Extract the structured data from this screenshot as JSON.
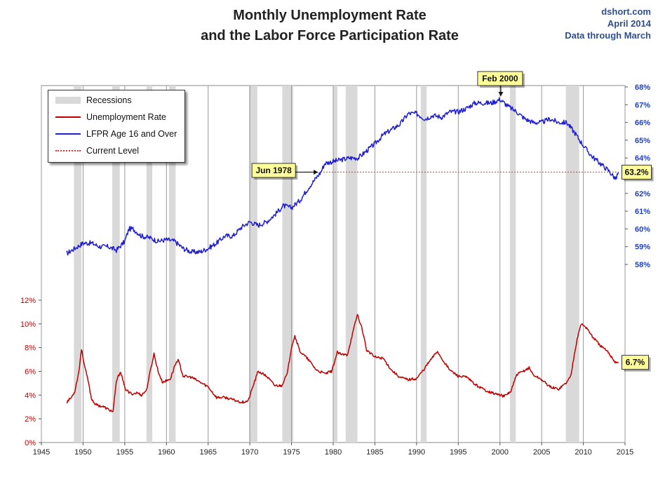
{
  "header": {
    "title_line1": "Monthly Unemployment Rate",
    "title_line2": "and the Labor Force Participation Rate",
    "source_line1": "dshort.com",
    "source_line2": "April 2014",
    "source_line3": "Data through March"
  },
  "chart_data": {
    "type": "line",
    "x_axis": {
      "range": [
        1945,
        2015
      ],
      "ticks": [
        1945,
        1950,
        1955,
        1960,
        1965,
        1970,
        1975,
        1980,
        1985,
        1990,
        1995,
        2000,
        2005,
        2010,
        2015
      ],
      "tick_labels": [
        "1945",
        "1950",
        "1955",
        "1960",
        "1965",
        "1970",
        "1975",
        "1980",
        "1985",
        "1990",
        "1995",
        "2000",
        "2005",
        "2010",
        "2015"
      ]
    },
    "y_axis_left": {
      "label": "",
      "range": [
        0,
        12
      ],
      "tick_labels": [
        "0%",
        "2%",
        "4%",
        "6%",
        "8%",
        "10%",
        "12%"
      ],
      "color": "#c00000"
    },
    "y_axis_right": {
      "label": "",
      "range": [
        58,
        68
      ],
      "tick_labels": [
        "58%",
        "59%",
        "60%",
        "61%",
        "62%",
        "63%",
        "64%",
        "65%",
        "66%",
        "67%",
        "68%"
      ],
      "color": "#1f3fbf"
    },
    "recessions": [
      [
        1948.9,
        1949.8
      ],
      [
        1953.5,
        1954.4
      ],
      [
        1957.6,
        1958.3
      ],
      [
        1960.3,
        1961.1
      ],
      [
        1969.9,
        1970.9
      ],
      [
        1973.9,
        1975.2
      ],
      [
        1980.0,
        1980.5
      ],
      [
        1981.5,
        1982.9
      ],
      [
        1990.5,
        1991.2
      ],
      [
        2001.2,
        2001.9
      ],
      [
        2007.9,
        2009.5
      ]
    ],
    "series": [
      {
        "name": "Unemployment Rate",
        "axis": "left",
        "color": "#c00000",
        "points": [
          [
            1948.0,
            3.4
          ],
          [
            1948.6,
            3.8
          ],
          [
            1949.0,
            4.3
          ],
          [
            1949.5,
            6.0
          ],
          [
            1949.8,
            7.9
          ],
          [
            1950.2,
            6.4
          ],
          [
            1950.6,
            5.2
          ],
          [
            1951.0,
            3.7
          ],
          [
            1951.5,
            3.2
          ],
          [
            1952.0,
            3.1
          ],
          [
            1952.5,
            3.0
          ],
          [
            1953.0,
            2.8
          ],
          [
            1953.6,
            2.6
          ],
          [
            1954.0,
            5.2
          ],
          [
            1954.5,
            6.0
          ],
          [
            1955.0,
            4.6
          ],
          [
            1955.5,
            4.2
          ],
          [
            1956.0,
            4.1
          ],
          [
            1956.5,
            4.2
          ],
          [
            1957.0,
            4.0
          ],
          [
            1957.6,
            4.4
          ],
          [
            1958.0,
            5.8
          ],
          [
            1958.5,
            7.5
          ],
          [
            1959.0,
            6.0
          ],
          [
            1959.5,
            5.1
          ],
          [
            1960.0,
            5.2
          ],
          [
            1960.5,
            5.4
          ],
          [
            1961.0,
            6.5
          ],
          [
            1961.4,
            7.0
          ],
          [
            1962.0,
            5.6
          ],
          [
            1963.0,
            5.5
          ],
          [
            1964.0,
            5.1
          ],
          [
            1965.0,
            4.7
          ],
          [
            1966.0,
            3.8
          ],
          [
            1967.0,
            3.8
          ],
          [
            1968.0,
            3.6
          ],
          [
            1969.0,
            3.4
          ],
          [
            1969.8,
            3.5
          ],
          [
            1970.5,
            5.0
          ],
          [
            1971.0,
            6.0
          ],
          [
            1972.0,
            5.6
          ],
          [
            1973.0,
            4.8
          ],
          [
            1973.8,
            4.8
          ],
          [
            1974.5,
            5.8
          ],
          [
            1975.0,
            8.1
          ],
          [
            1975.4,
            9.0
          ],
          [
            1976.0,
            7.7
          ],
          [
            1977.0,
            7.0
          ],
          [
            1978.0,
            6.1
          ],
          [
            1979.0,
            5.8
          ],
          [
            1979.8,
            6.0
          ],
          [
            1980.5,
            7.6
          ],
          [
            1981.0,
            7.4
          ],
          [
            1981.7,
            7.4
          ],
          [
            1982.4,
            9.4
          ],
          [
            1982.9,
            10.8
          ],
          [
            1983.5,
            9.5
          ],
          [
            1984.0,
            7.8
          ],
          [
            1985.0,
            7.2
          ],
          [
            1986.0,
            7.1
          ],
          [
            1987.0,
            6.1
          ],
          [
            1988.0,
            5.5
          ],
          [
            1989.0,
            5.3
          ],
          [
            1990.0,
            5.4
          ],
          [
            1990.8,
            6.1
          ],
          [
            1991.5,
            6.8
          ],
          [
            1992.5,
            7.7
          ],
          [
            1993.0,
            7.1
          ],
          [
            1994.0,
            6.1
          ],
          [
            1995.0,
            5.6
          ],
          [
            1996.0,
            5.5
          ],
          [
            1997.0,
            4.9
          ],
          [
            1998.0,
            4.5
          ],
          [
            1999.0,
            4.2
          ],
          [
            2000.0,
            4.0
          ],
          [
            2000.5,
            3.9
          ],
          [
            2001.3,
            4.3
          ],
          [
            2002.0,
            5.7
          ],
          [
            2003.5,
            6.3
          ],
          [
            2004.0,
            5.7
          ],
          [
            2005.0,
            5.3
          ],
          [
            2006.0,
            4.7
          ],
          [
            2007.0,
            4.5
          ],
          [
            2007.9,
            5.0
          ],
          [
            2008.5,
            5.6
          ],
          [
            2009.0,
            7.8
          ],
          [
            2009.5,
            9.5
          ],
          [
            2009.8,
            10.0
          ],
          [
            2010.5,
            9.6
          ],
          [
            2011.0,
            9.0
          ],
          [
            2012.0,
            8.2
          ],
          [
            2013.0,
            7.6
          ],
          [
            2013.8,
            6.8
          ],
          [
            2014.2,
            6.7
          ]
        ]
      },
      {
        "name": "LFPR Age 16 and Over",
        "axis": "right",
        "color": "#1f1fd0",
        "points": [
          [
            1948.0,
            58.6
          ],
          [
            1949.0,
            58.9
          ],
          [
            1950.0,
            59.2
          ],
          [
            1951.0,
            59.2
          ],
          [
            1952.0,
            59.0
          ],
          [
            1953.0,
            59.0
          ],
          [
            1954.0,
            58.8
          ],
          [
            1955.0,
            59.3
          ],
          [
            1955.5,
            60.0
          ],
          [
            1956.0,
            60.0
          ],
          [
            1957.0,
            59.6
          ],
          [
            1958.0,
            59.5
          ],
          [
            1959.0,
            59.3
          ],
          [
            1960.0,
            59.4
          ],
          [
            1961.0,
            59.3
          ],
          [
            1962.0,
            58.9
          ],
          [
            1963.0,
            58.7
          ],
          [
            1964.0,
            58.7
          ],
          [
            1965.0,
            58.9
          ],
          [
            1966.0,
            59.2
          ],
          [
            1967.0,
            59.6
          ],
          [
            1968.0,
            59.6
          ],
          [
            1969.0,
            60.1
          ],
          [
            1970.0,
            60.4
          ],
          [
            1971.0,
            60.2
          ],
          [
            1972.0,
            60.4
          ],
          [
            1973.0,
            60.8
          ],
          [
            1974.0,
            61.3
          ],
          [
            1975.0,
            61.2
          ],
          [
            1976.0,
            61.6
          ],
          [
            1977.0,
            62.3
          ],
          [
            1978.5,
            63.2
          ],
          [
            1979.0,
            63.7
          ],
          [
            1980.0,
            63.8
          ],
          [
            1981.0,
            63.9
          ],
          [
            1982.0,
            64.0
          ],
          [
            1983.0,
            64.0
          ],
          [
            1984.0,
            64.4
          ],
          [
            1985.0,
            64.8
          ],
          [
            1986.0,
            65.3
          ],
          [
            1987.0,
            65.6
          ],
          [
            1988.0,
            65.9
          ],
          [
            1989.0,
            66.5
          ],
          [
            1990.0,
            66.5
          ],
          [
            1991.0,
            66.2
          ],
          [
            1992.0,
            66.4
          ],
          [
            1993.0,
            66.3
          ],
          [
            1994.0,
            66.6
          ],
          [
            1995.0,
            66.6
          ],
          [
            1996.0,
            66.8
          ],
          [
            1997.0,
            67.1
          ],
          [
            1998.0,
            67.1
          ],
          [
            1999.0,
            67.1
          ],
          [
            2000.0,
            67.3
          ],
          [
            2001.0,
            66.9
          ],
          [
            2002.0,
            66.6
          ],
          [
            2003.0,
            66.2
          ],
          [
            2004.0,
            66.0
          ],
          [
            2005.0,
            66.0
          ],
          [
            2006.0,
            66.2
          ],
          [
            2007.0,
            66.0
          ],
          [
            2008.0,
            66.0
          ],
          [
            2009.0,
            65.4
          ],
          [
            2010.0,
            64.7
          ],
          [
            2011.0,
            64.1
          ],
          [
            2012.0,
            63.7
          ],
          [
            2013.0,
            63.3
          ],
          [
            2013.9,
            62.8
          ],
          [
            2014.2,
            63.2
          ]
        ]
      },
      {
        "name": "Current Level",
        "axis": "right",
        "style": "dotted",
        "color": "#e83030",
        "points": [
          [
            1978.5,
            63.2
          ],
          [
            2014.2,
            63.2
          ]
        ]
      }
    ],
    "legend": {
      "position": "top-left",
      "entries": [
        "Recessions",
        "Unemployment Rate",
        "LFPR Age 16 and Over",
        "Current Level"
      ]
    },
    "annotations": [
      {
        "text": "Feb 2000",
        "x": 2000.1,
        "y": 67.4,
        "axis": "right"
      },
      {
        "text": "Jun 1978",
        "x": 1978.5,
        "y": 63.2,
        "axis": "right"
      },
      {
        "text": "63.2%",
        "x": 2014.2,
        "y": 63.2,
        "axis": "right"
      },
      {
        "text": "6.7%",
        "x": 2014.2,
        "y": 6.7,
        "axis": "left"
      }
    ],
    "grid": "vertical",
    "colors": {
      "recession_band": "#d9d9d9",
      "unemployment": "#c00000",
      "lfpr": "#1f1fd0",
      "current_level": "#e83030",
      "callout_fill": "#ffff99",
      "left_axis_text": "#c00000",
      "right_axis_text": "#1f3fbf"
    }
  }
}
